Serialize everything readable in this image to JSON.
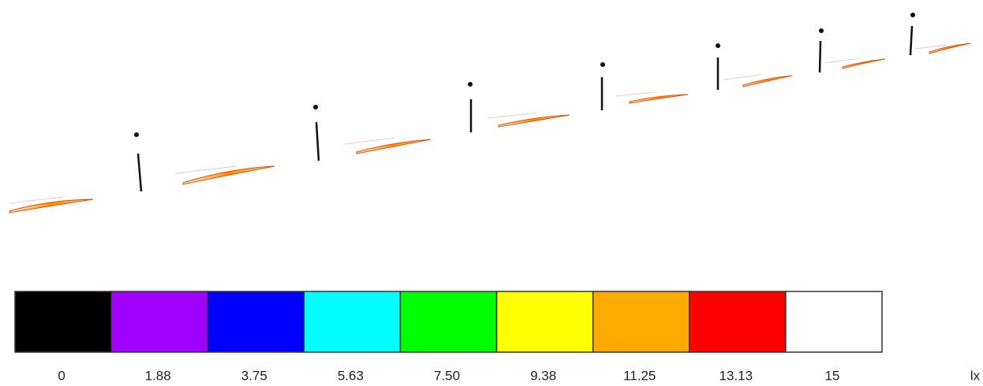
{
  "legend": {
    "labels": [
      "0",
      "1.88",
      "3.75",
      "5.63",
      "7.50",
      "9.38",
      "11.25",
      "13.13",
      "15"
    ],
    "colors": [
      "#000000",
      "#a000ff",
      "#0000ff",
      "#00ffff",
      "#00ff00",
      "#ffff00",
      "#ffaa00",
      "#ff0000",
      "#ffffff"
    ],
    "unit": "lx"
  }
}
